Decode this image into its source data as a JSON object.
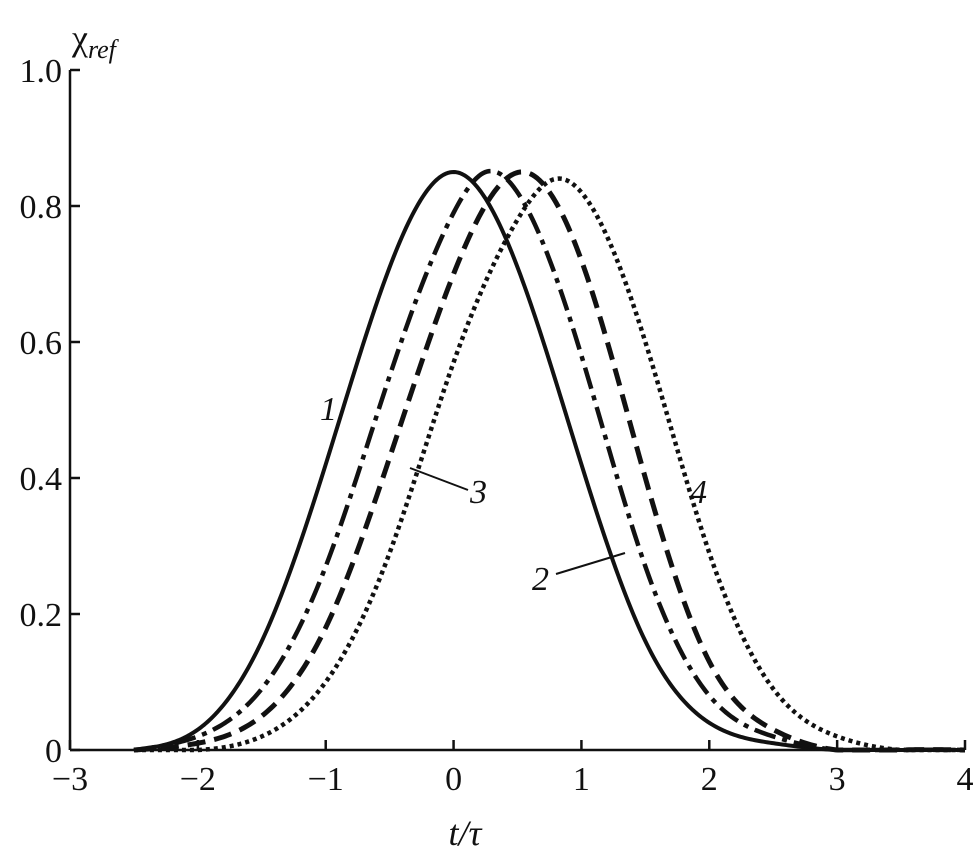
{
  "chart_data": {
    "type": "line",
    "xlabel": "t/τ",
    "ylabel_main": "χ",
    "ylabel_sub": "ref",
    "xlim": [
      -3,
      4
    ],
    "ylim": [
      0,
      1.0
    ],
    "x_ticks": [
      -3,
      -2,
      -1,
      0,
      1,
      2,
      3,
      4
    ],
    "x_tick_labels": [
      "−3",
      "−2",
      "−1",
      "0",
      "1",
      "2",
      "3",
      "4"
    ],
    "y_ticks": [
      0,
      0.2,
      0.4,
      0.6,
      0.8,
      1.0
    ],
    "y_tick_labels": [
      "0",
      "0.2",
      "0.4",
      "0.6",
      "0.8",
      "1.0"
    ],
    "grid": false,
    "legend": "none",
    "series": [
      {
        "label": "1",
        "style": "solid",
        "x": [
          -2.5,
          -2.0,
          -1.5,
          -1.0,
          -0.5,
          0.0,
          0.5,
          1.0,
          1.5,
          2.0,
          2.5,
          3.0,
          3.5,
          4.0
        ],
        "y": [
          0.0,
          0.03,
          0.16,
          0.42,
          0.71,
          0.85,
          0.71,
          0.42,
          0.16,
          0.04,
          0.01,
          0.0,
          0.0,
          0.0
        ]
      },
      {
        "label": "2",
        "style": "dashdot",
        "x": [
          -2.5,
          -2.0,
          -1.5,
          -1.0,
          -0.5,
          0.0,
          0.25,
          0.5,
          1.0,
          1.5,
          2.0,
          2.5,
          3.0,
          3.5,
          4.0
        ],
        "y": [
          0.0,
          0.02,
          0.09,
          0.27,
          0.55,
          0.79,
          0.85,
          0.82,
          0.58,
          0.27,
          0.08,
          0.02,
          0.0,
          0.0,
          0.0
        ]
      },
      {
        "label": "3",
        "style": "dashed",
        "x": [
          -2.5,
          -2.0,
          -1.5,
          -1.0,
          -0.5,
          0.0,
          0.55,
          1.0,
          1.5,
          2.0,
          2.5,
          3.0,
          3.5,
          4.0
        ],
        "y": [
          0.0,
          0.01,
          0.05,
          0.18,
          0.43,
          0.7,
          0.85,
          0.72,
          0.4,
          0.13,
          0.03,
          0.0,
          0.0,
          0.0
        ]
      },
      {
        "label": "4",
        "style": "dotted",
        "x": [
          -2.5,
          -2.0,
          -1.5,
          -1.0,
          -0.5,
          0.0,
          0.5,
          0.8,
          1.0,
          1.5,
          2.0,
          2.5,
          3.0,
          3.5,
          4.0
        ],
        "y": [
          0.0,
          0.0,
          0.02,
          0.1,
          0.29,
          0.57,
          0.78,
          0.84,
          0.82,
          0.6,
          0.29,
          0.09,
          0.02,
          0.0,
          0.0
        ]
      }
    ]
  }
}
